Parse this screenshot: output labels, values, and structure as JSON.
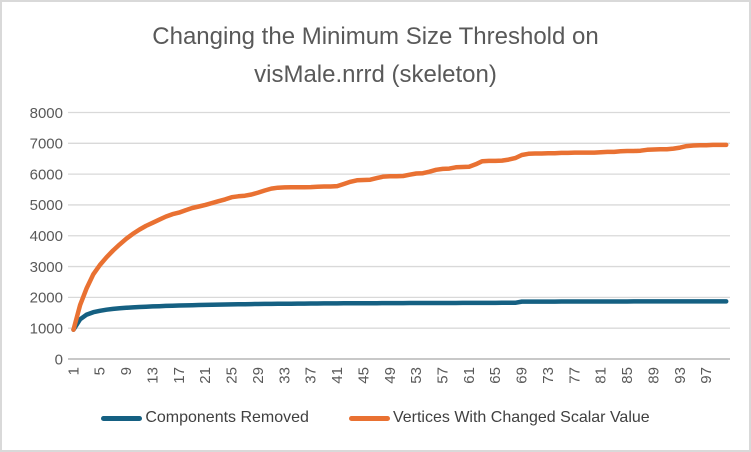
{
  "chart_data": {
    "type": "line",
    "title": "Changing the Minimum Size Threshold on visMale.nrrd (skeleton)",
    "title_line1": "Changing the Minimum Size Threshold on",
    "title_line2": "visMale.nrrd (skeleton)",
    "xlabel": "",
    "ylabel": "",
    "x_range": [
      1,
      100
    ],
    "ylim": [
      0,
      8000
    ],
    "grid": true,
    "legend_position": "bottom",
    "y_ticks": [
      0,
      1000,
      2000,
      3000,
      4000,
      5000,
      6000,
      7000,
      8000
    ],
    "x_tick_labels": [
      "1",
      "5",
      "9",
      "13",
      "17",
      "21",
      "25",
      "29",
      "33",
      "37",
      "41",
      "45",
      "49",
      "53",
      "57",
      "61",
      "65",
      "69",
      "73",
      "77",
      "81",
      "85",
      "89",
      "93",
      "97"
    ],
    "colors": {
      "background": "#FFFFFF",
      "border": "#D9D9D9",
      "grid": "#D9D9D9",
      "axis": "#A6A6A6",
      "tick_text": "#595959",
      "title_text": "#595959",
      "legend_text": "#404040"
    },
    "series": [
      {
        "name": "Components Removed",
        "color": "#156082",
        "values": [
          950,
          1290,
          1440,
          1520,
          1565,
          1600,
          1625,
          1645,
          1662,
          1676,
          1688,
          1698,
          1707,
          1715,
          1722,
          1729,
          1735,
          1741,
          1746,
          1751,
          1756,
          1760,
          1764,
          1768,
          1772,
          1775,
          1778,
          1781,
          1784,
          1787,
          1789,
          1791,
          1793,
          1795,
          1797,
          1799,
          1800,
          1802,
          1803,
          1805,
          1806,
          1807,
          1808,
          1809,
          1810,
          1811,
          1812,
          1813,
          1814,
          1815,
          1815,
          1816,
          1816,
          1817,
          1817,
          1818,
          1818,
          1819,
          1819,
          1820,
          1820,
          1821,
          1821,
          1822,
          1822,
          1823,
          1823,
          1824,
          1862,
          1863,
          1863,
          1864,
          1864,
          1864,
          1865,
          1865,
          1865,
          1866,
          1866,
          1866,
          1866,
          1867,
          1867,
          1867,
          1867,
          1868,
          1868,
          1868,
          1868,
          1869,
          1869,
          1869,
          1869,
          1870,
          1870,
          1870,
          1870,
          1870,
          1870,
          1870
        ]
      },
      {
        "name": "Vertices With Changed Scalar Value",
        "color": "#E97132",
        "values": [
          950,
          1750,
          2300,
          2750,
          3050,
          3300,
          3520,
          3720,
          3900,
          4060,
          4200,
          4320,
          4420,
          4520,
          4620,
          4700,
          4750,
          4830,
          4900,
          4950,
          5000,
          5060,
          5120,
          5180,
          5250,
          5280,
          5300,
          5340,
          5400,
          5470,
          5530,
          5560,
          5570,
          5575,
          5575,
          5575,
          5580,
          5590,
          5600,
          5600,
          5610,
          5680,
          5750,
          5800,
          5810,
          5820,
          5870,
          5920,
          5930,
          5930,
          5940,
          5980,
          6020,
          6030,
          6080,
          6140,
          6170,
          6180,
          6220,
          6230,
          6240,
          6320,
          6420,
          6430,
          6430,
          6440,
          6470,
          6520,
          6620,
          6660,
          6670,
          6670,
          6680,
          6680,
          6690,
          6690,
          6700,
          6700,
          6700,
          6700,
          6710,
          6720,
          6720,
          6740,
          6750,
          6750,
          6760,
          6790,
          6800,
          6810,
          6810,
          6830,
          6860,
          6910,
          6930,
          6940,
          6940,
          6950,
          6950,
          6950
        ]
      }
    ]
  }
}
